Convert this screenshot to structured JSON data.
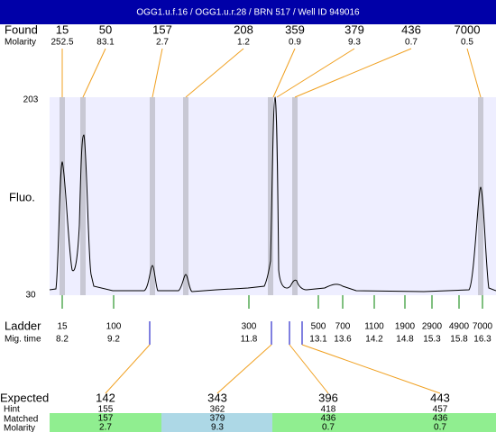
{
  "header": {
    "title": "OGG1.u.f.16 / OGG1.u.r.28 / BRN 517 / Well ID 949016"
  },
  "found": {
    "label": "Found",
    "molarity_label": "Molarity",
    "peaks": [
      {
        "size": 15,
        "molarity": 252.5
      },
      {
        "size": 50,
        "molarity": 83.1
      },
      {
        "size": 157,
        "molarity": 2.7
      },
      {
        "size": 208,
        "molarity": 1.2
      },
      {
        "size": 359,
        "molarity": 0.9
      },
      {
        "size": 379,
        "molarity": 9.3
      },
      {
        "size": 436,
        "molarity": 0.7
      },
      {
        "size": 7000,
        "molarity": 0.5
      }
    ]
  },
  "plot": {
    "y_label": "Fluo.",
    "y_top": 203,
    "y_bottom": 30
  },
  "ladder": {
    "label": "Ladder",
    "time_label": "Mig. time",
    "peaks": [
      {
        "size": 15,
        "time": 8.2
      },
      {
        "size": 100,
        "time": 9.2
      },
      {
        "size": 300,
        "time": 11.8
      },
      {
        "size": 500,
        "time": 13.1
      },
      {
        "size": 700,
        "time": 13.6
      },
      {
        "size": 1100,
        "time": 14.2
      },
      {
        "size": 1900,
        "time": 14.8
      },
      {
        "size": 2900,
        "time": 15.3
      },
      {
        "size": 4900,
        "time": 15.8
      },
      {
        "size": 7000,
        "time": 16.3
      }
    ]
  },
  "expected": {
    "label": "Expected",
    "hint_label": "Hint",
    "matched_label": "Matched",
    "molarity_label": "Molarity",
    "rows": [
      {
        "expected": 142,
        "hint": 155,
        "matched": 157,
        "molarity": 2.7
      },
      {
        "expected": 343,
        "hint": 362,
        "matched": 379,
        "molarity": 9.3
      },
      {
        "expected": 396,
        "hint": 418,
        "matched": 436,
        "molarity": 0.7
      },
      {
        "expected": 443,
        "hint": 457,
        "matched": 436,
        "molarity": 0.7
      }
    ]
  }
}
